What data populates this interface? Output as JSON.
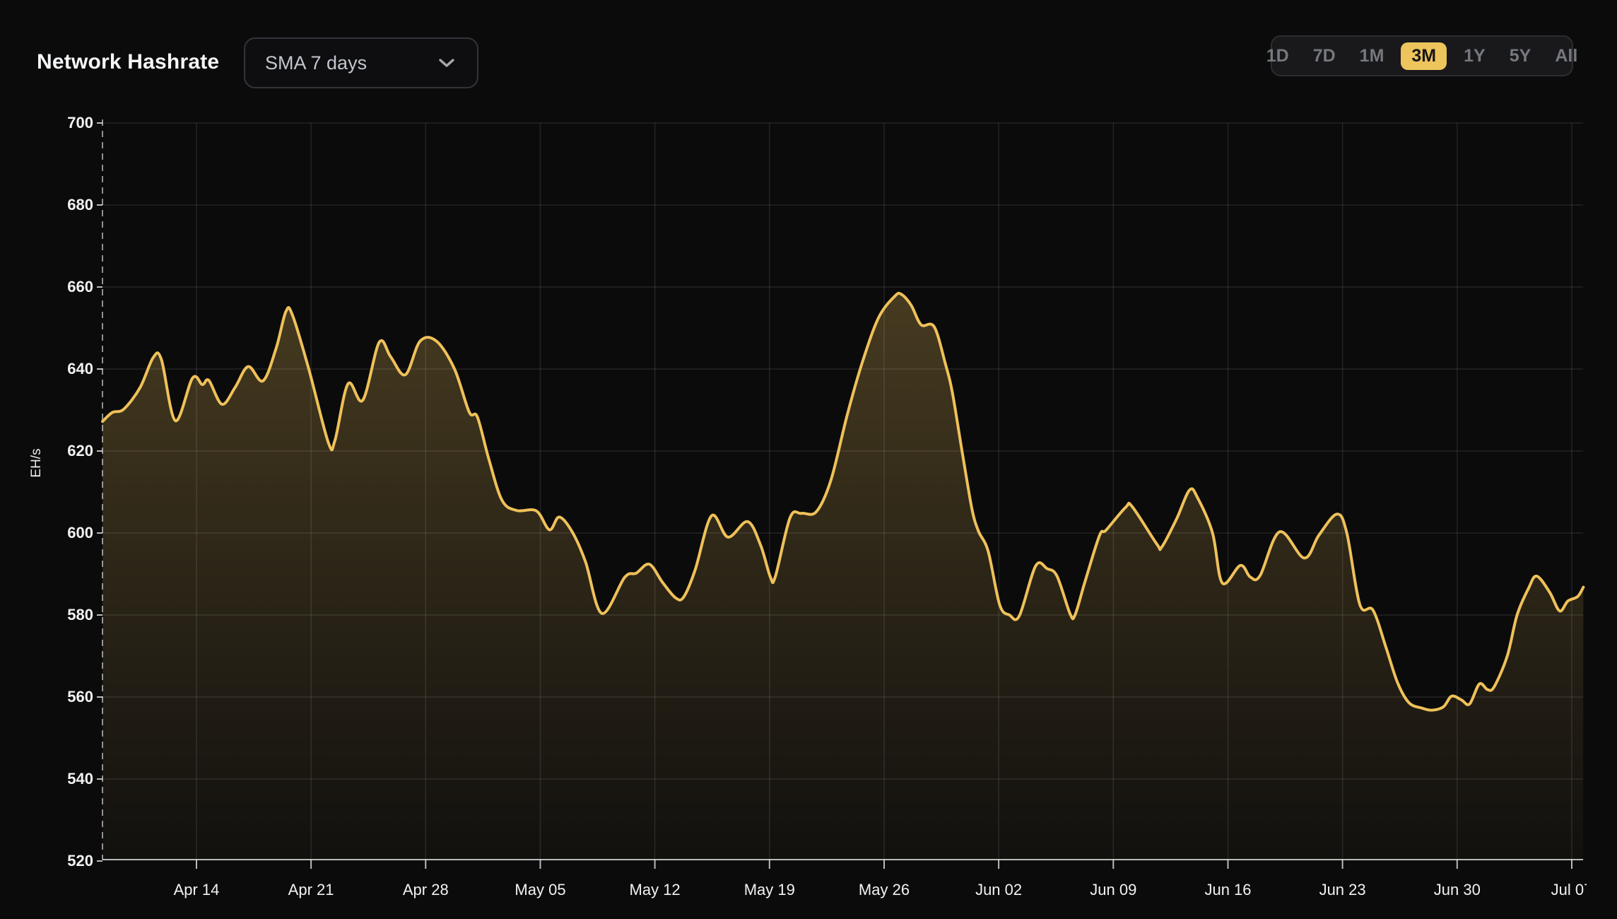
{
  "header": {
    "title": "Network Hashrate",
    "dropdown": {
      "value": "SMA 7 days",
      "icon": "chevron-down-icon"
    },
    "ranges": {
      "items": [
        "1D",
        "7D",
        "1M",
        "3M",
        "1Y",
        "5Y",
        "All"
      ],
      "selected": "3M"
    }
  },
  "colors": {
    "background": "#0b0b0c",
    "accent_line": "#efc159",
    "selected_range_bg": "#eec45c",
    "grid": "rgba(255,255,255,0.10)",
    "axis": "#d9d9d9",
    "tick_text": "#f2f2f2"
  },
  "chart_data": {
    "type": "area",
    "title": "Network Hashrate",
    "ylabel": "EH/s",
    "xlabel": "",
    "ylim": [
      520,
      700
    ],
    "grid": true,
    "legend": false,
    "y_ticks": [
      700,
      680,
      660,
      640,
      620,
      600,
      580,
      560,
      540,
      520
    ],
    "x_ticks": {
      "labels": [
        "Apr 14",
        "Apr 21",
        "Apr 28",
        "May 05",
        "May 12",
        "May 19",
        "May 26",
        "Jun 02",
        "Jun 09",
        "Jun 16",
        "Jun 23",
        "Jun 30",
        "Jul 07"
      ],
      "first_tick_day_offset": 5.74,
      "step_days": 7
    },
    "span_days": 90.45,
    "series": [
      {
        "name": "Network Hashrate (SMA 7 days, EH/s)",
        "points": [
          [
            0,
            627.2
          ],
          [
            0.6,
            629.4
          ],
          [
            1.3,
            630.2
          ],
          [
            2.3,
            635.5
          ],
          [
            3.1,
            642.8
          ],
          [
            3.6,
            642.3
          ],
          [
            4.45,
            627.4
          ],
          [
            5.5,
            637.8
          ],
          [
            6.1,
            636.2
          ],
          [
            6.5,
            637.2
          ],
          [
            7.3,
            631.4
          ],
          [
            8.1,
            635.5
          ],
          [
            8.9,
            640.6
          ],
          [
            9.8,
            637.1
          ],
          [
            10.6,
            645.0
          ],
          [
            11.2,
            654.0
          ],
          [
            11.6,
            653.2
          ],
          [
            12.6,
            640.0
          ],
          [
            13.8,
            622.0
          ],
          [
            14.2,
            622.6
          ],
          [
            15.0,
            636.4
          ],
          [
            15.9,
            632.4
          ],
          [
            16.9,
            646.5
          ],
          [
            17.6,
            643.0
          ],
          [
            18.5,
            638.6
          ],
          [
            19.4,
            646.8
          ],
          [
            20.4,
            646.8
          ],
          [
            21.5,
            640.0
          ],
          [
            22.4,
            629.5
          ],
          [
            22.9,
            628.3
          ],
          [
            23.6,
            618.0
          ],
          [
            24.4,
            608.0
          ],
          [
            25.3,
            605.5
          ],
          [
            26.5,
            605.4
          ],
          [
            27.3,
            600.8
          ],
          [
            27.9,
            603.9
          ],
          [
            28.7,
            600.2
          ],
          [
            29.5,
            593.0
          ],
          [
            30.5,
            580.4
          ],
          [
            31.9,
            589.2
          ],
          [
            32.6,
            590.2
          ],
          [
            33.4,
            592.4
          ],
          [
            34.2,
            588.0
          ],
          [
            35.0,
            584.2
          ],
          [
            35.5,
            584.4
          ],
          [
            36.2,
            591.0
          ],
          [
            37.2,
            604.2
          ],
          [
            38.2,
            599.0
          ],
          [
            39.4,
            602.8
          ],
          [
            40.2,
            597.0
          ],
          [
            40.8,
            589.2
          ],
          [
            41.1,
            589.4
          ],
          [
            42.0,
            603.8
          ],
          [
            42.7,
            604.8
          ],
          [
            43.6,
            605.2
          ],
          [
            44.5,
            613.0
          ],
          [
            45.5,
            629.0
          ],
          [
            46.4,
            641.5
          ],
          [
            47.4,
            652.5
          ],
          [
            48.4,
            657.8
          ],
          [
            48.8,
            658.2
          ],
          [
            49.4,
            655.5
          ],
          [
            50.0,
            650.8
          ],
          [
            50.8,
            650.3
          ],
          [
            51.5,
            641.0
          ],
          [
            51.9,
            634.5
          ],
          [
            52.5,
            620.0
          ],
          [
            53.1,
            606.0
          ],
          [
            53.5,
            600.5
          ],
          [
            54.1,
            595.5
          ],
          [
            54.8,
            582.5
          ],
          [
            55.4,
            580.0
          ],
          [
            56.0,
            579.8
          ],
          [
            57.0,
            592.0
          ],
          [
            57.7,
            591.3
          ],
          [
            58.3,
            589.5
          ],
          [
            59.1,
            580.3
          ],
          [
            59.4,
            580.0
          ],
          [
            60.0,
            588.0
          ],
          [
            60.9,
            599.4
          ],
          [
            61.3,
            600.7
          ],
          [
            62.5,
            606.3
          ],
          [
            62.9,
            606.4
          ],
          [
            64.4,
            597.3
          ],
          [
            64.7,
            596.6
          ],
          [
            65.6,
            603.4
          ],
          [
            66.4,
            610.5
          ],
          [
            66.9,
            608.5
          ],
          [
            67.8,
            600.0
          ],
          [
            68.4,
            587.8
          ],
          [
            69.5,
            592.1
          ],
          [
            70.1,
            589.3
          ],
          [
            70.7,
            589.6
          ],
          [
            71.9,
            600.3
          ],
          [
            73.4,
            593.9
          ],
          [
            74.3,
            599.5
          ],
          [
            75.4,
            604.6
          ],
          [
            76.0,
            600.0
          ],
          [
            76.8,
            582.5
          ],
          [
            77.6,
            581.2
          ],
          [
            78.4,
            572.0
          ],
          [
            79.1,
            563.5
          ],
          [
            79.8,
            558.6
          ],
          [
            80.6,
            557.3
          ],
          [
            81.2,
            556.8
          ],
          [
            81.9,
            557.6
          ],
          [
            82.4,
            560.2
          ],
          [
            83.0,
            559.3
          ],
          [
            83.5,
            558.3
          ],
          [
            84.1,
            563.2
          ],
          [
            84.6,
            561.8
          ],
          [
            85.0,
            562.5
          ],
          [
            85.8,
            570.0
          ],
          [
            86.4,
            580.0
          ],
          [
            87.1,
            586.5
          ],
          [
            87.6,
            589.5
          ],
          [
            88.4,
            585.5
          ],
          [
            89.0,
            581.0
          ],
          [
            89.5,
            583.4
          ],
          [
            90.1,
            584.5
          ],
          [
            90.45,
            586.8
          ]
        ]
      }
    ]
  }
}
